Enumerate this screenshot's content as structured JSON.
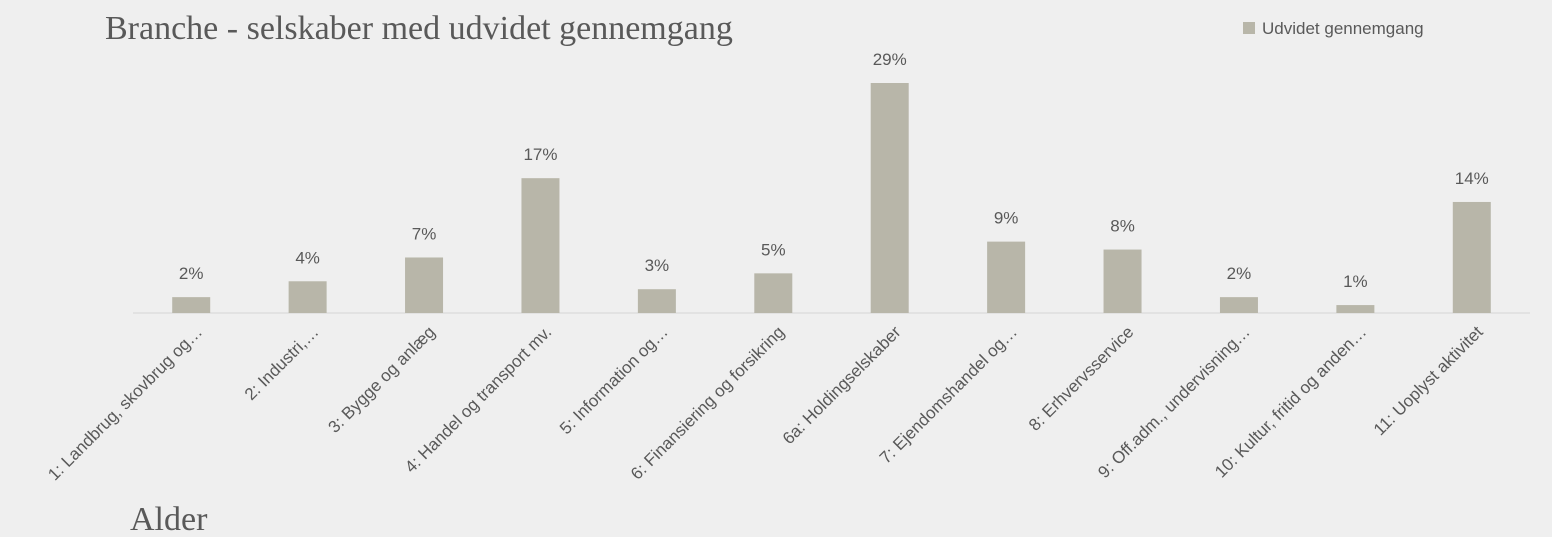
{
  "chart_data": {
    "type": "bar",
    "title": "Branche - selskaber med udvidet gennemgang",
    "subtitle": "Alder",
    "categories": [
      "1: Landbrug, skovbrug og…",
      "2: Industri,…",
      "3: Bygge og anlæg",
      "4: Handel og transport mv.",
      "5: Information og…",
      "6: Finansiering og forsikring",
      "6a: Holdingselskaber",
      "7: Ejendomshandel og…",
      "8: Erhvervsservice",
      "9: Off.adm., undervisning…",
      "10: Kultur, fritid og anden…",
      "11: Uoplyst aktivitet"
    ],
    "series": [
      {
        "name": "Udvidet gennemgang",
        "color": "#b8b6a9",
        "values": [
          2,
          4,
          7,
          17,
          3,
          5,
          29,
          9,
          8,
          2,
          1,
          14
        ],
        "value_labels": [
          "2%",
          "4%",
          "7%",
          "17%",
          "3%",
          "5%",
          "29%",
          "9%",
          "8%",
          "2%",
          "1%",
          "14%"
        ]
      }
    ],
    "legend": "top-right"
  }
}
